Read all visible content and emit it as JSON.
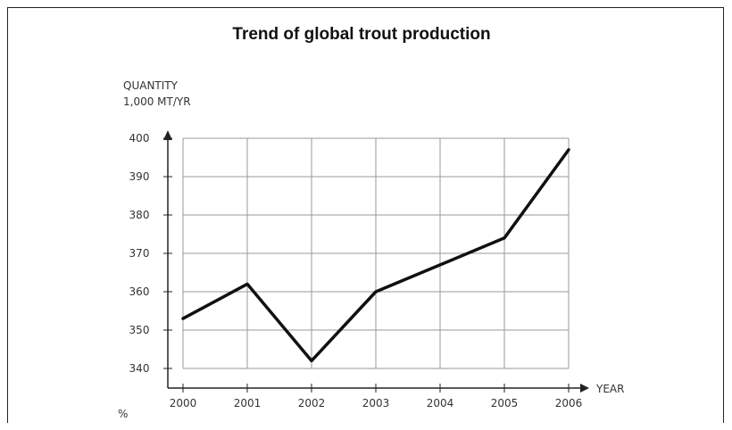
{
  "chart_data": {
    "type": "line",
    "title": "Trend of global trout production",
    "ylabel_line1": "QUANTITY",
    "ylabel_line2": "1,000 MT/YR",
    "xlabel": "YEAR",
    "x": [
      "2000",
      "2001",
      "2002",
      "2003",
      "2004",
      "2005",
      "2006"
    ],
    "y": [
      353,
      362,
      342,
      360,
      367,
      374,
      397
    ],
    "ylim": [
      340,
      400
    ],
    "y_ticks": [
      340,
      350,
      360,
      370,
      380,
      390,
      400
    ],
    "y_tick_labels": [
      "340",
      "350",
      "360",
      "370",
      "380",
      "390",
      "400"
    ],
    "grid": true,
    "line_color": "#111111",
    "grid_color": "#999999",
    "footnote": "%"
  }
}
